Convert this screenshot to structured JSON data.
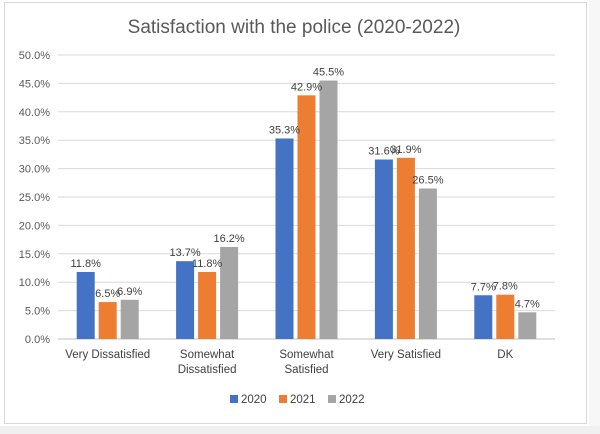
{
  "chart_data": {
    "type": "bar",
    "title": "Satisfaction with the police (2020-2022)",
    "xlabel": "",
    "ylabel": "",
    "ylim": [
      0,
      50
    ],
    "ytick_labels": [
      "0.0%",
      "5.0%",
      "10.0%",
      "15.0%",
      "20.0%",
      "25.0%",
      "30.0%",
      "35.0%",
      "40.0%",
      "45.0%",
      "50.0%"
    ],
    "categories": [
      [
        "Very Dissatisfied"
      ],
      [
        "Somewhat",
        "Dissatisfied"
      ],
      [
        "Somewhat",
        "Satisfied"
      ],
      [
        "Very Satisfied"
      ],
      [
        "DK"
      ]
    ],
    "series": [
      {
        "name": "2020",
        "color": "#4472c4",
        "values": [
          11.8,
          13.7,
          35.3,
          31.6,
          7.7
        ],
        "labels": [
          "11.8%",
          "13.7%",
          "35.3%",
          "31.6%",
          "7.7%"
        ]
      },
      {
        "name": "2021",
        "color": "#ed7d31",
        "values": [
          6.5,
          11.8,
          42.9,
          31.9,
          7.8
        ],
        "labels": [
          "6.5%",
          "11.8%",
          "42.9%",
          "31.9%",
          "7.8%"
        ]
      },
      {
        "name": "2022",
        "color": "#a5a5a5",
        "values": [
          6.9,
          16.2,
          45.5,
          26.5,
          4.7
        ],
        "labels": [
          "6.9%",
          "16.2%",
          "45.5%",
          "26.5%",
          "4.7%"
        ]
      }
    ],
    "grid": true,
    "legend": "bottom"
  }
}
